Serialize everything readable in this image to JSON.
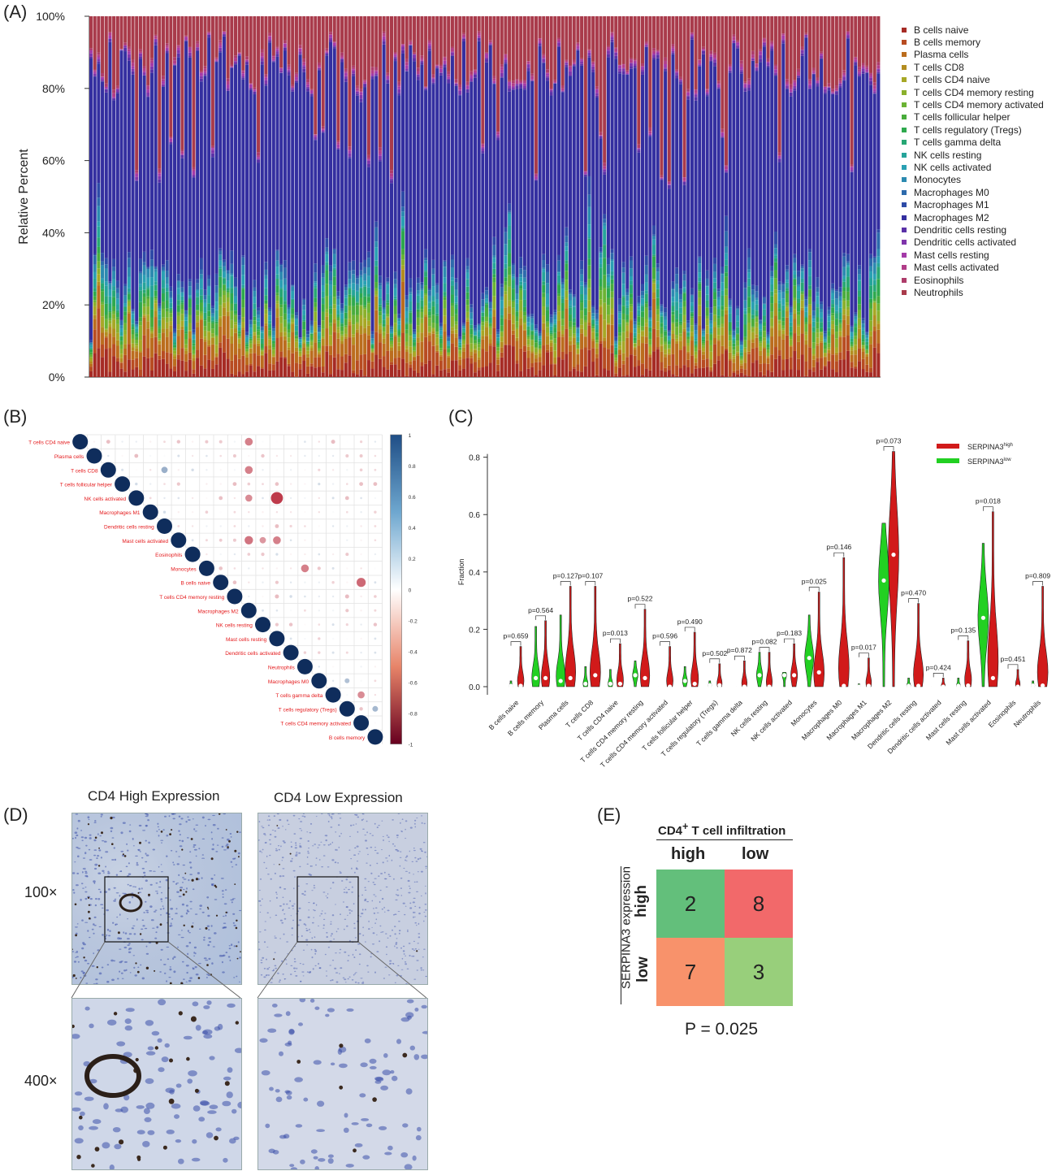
{
  "panels": {
    "A": "(A)",
    "B": "(B)",
    "C": "(C)",
    "D": "(D)",
    "E": "(E)"
  },
  "colors": {
    "cell_types": [
      "#a62b25",
      "#b84c22",
      "#bb6d1e",
      "#b38d20",
      "#a7a826",
      "#8bb02c",
      "#6bb334",
      "#49ac3c",
      "#2ea94e",
      "#27a774",
      "#26a49a",
      "#2aa0b3",
      "#2c8ab0",
      "#2d6aac",
      "#2e4ba7",
      "#342fa0",
      "#5a31a7",
      "#7f35ab",
      "#a43aa8",
      "#b13d89",
      "#ae3c6a",
      "#a93b4b"
    ],
    "high": "#d11a1a",
    "low": "#22d022",
    "corr_pos": "#1f4e86",
    "corr_neg": "#b2182b",
    "table_green": "#63bf7b",
    "table_red": "#f2696a",
    "table_orange": "#f8926b",
    "table_lightgreen": "#98cf7b"
  },
  "chart_data": [
    {
      "id": "A",
      "type": "bar",
      "ylabel": "Relative Percent",
      "y_ticks": [
        "0%",
        "20%",
        "40%",
        "60%",
        "80%",
        "100%"
      ],
      "stacked": true,
      "n_samples": 208,
      "ylim": [
        0,
        100
      ],
      "mean_composition_percent": {
        "Low-abundance types": 18,
        "Macrophages M2": 55,
        "Neutrophils": 13
      },
      "legend": [
        "B cells naive",
        "B cells memory",
        "Plasma cells",
        "T cells CD8",
        "T cells CD4 naive",
        "T cells CD4 memory resting",
        "T cells CD4 memory activated",
        "T cells follicular helper",
        "T cells regulatory (Tregs)",
        "T cells gamma delta",
        "NK cells resting",
        "NK cells activated",
        "Monocytes",
        "Macrophages M0",
        "Macrophages M1",
        "Macrophages M2",
        "Dendritic cells resting",
        "Dendritic cells activated",
        "Mast cells resting",
        "Mast cells activated",
        "Eosinophils",
        "Neutrophils"
      ]
    },
    {
      "id": "B",
      "type": "heatmap",
      "labels": [
        "T cells CD4 naive",
        "Plasma cells",
        "T cells CD8",
        "T cells follicular helper",
        "NK cells activated",
        "Macrophages M1",
        "Dendritic cells resting",
        "Mast cells activated",
        "Eosinophils",
        "Monocytes",
        "B cells naive",
        "T cells CD4 memory resting",
        "Macrophages M2",
        "NK cells resting",
        "Mast cells resting",
        "Dendritic cells activated",
        "Neutrophils",
        "Macrophages M0",
        "T cells gamma delta",
        "T cells regulatory (Tregs)",
        "T cells CD4 memory activated",
        "B cells memory"
      ],
      "colorbar_ticks": [
        "1",
        "0.8",
        "0.6",
        "0.4",
        "0.2",
        "0",
        "-0.2",
        "-0.4",
        "-0.6",
        "-0.8",
        "-1"
      ],
      "highlighted_correlations": [
        {
          "row": "T cells CD4 naive",
          "col": "Macrophages M2",
          "value": -0.55
        },
        {
          "row": "T cells CD8",
          "col": "Dendritic cells resting",
          "value": 0.45
        },
        {
          "row": "T cells CD8",
          "col": "Macrophages M2",
          "value": -0.55
        },
        {
          "row": "NK cells activated",
          "col": "Macrophages M2",
          "value": -0.5
        },
        {
          "row": "NK cells activated",
          "col": "Mast cells resting",
          "value": -0.85
        },
        {
          "row": "Mast cells activated",
          "col": "Macrophages M2",
          "value": -0.6
        },
        {
          "row": "Mast cells activated",
          "col": "NK cells resting",
          "value": -0.45
        },
        {
          "row": "Mast cells activated",
          "col": "Mast cells resting",
          "value": -0.55
        },
        {
          "row": "Monocytes",
          "col": "Neutrophils",
          "value": -0.55
        },
        {
          "row": "B cells naive",
          "col": "T cells CD4 memory activated",
          "value": -0.65
        },
        {
          "row": "Macrophages M0",
          "col": "T cells regulatory (Tregs)",
          "value": 0.35
        },
        {
          "row": "T cells gamma delta",
          "col": "T cells CD4 memory activated",
          "value": -0.5
        },
        {
          "row": "T cells regulatory (Tregs)",
          "col": "B cells memory",
          "value": 0.4
        }
      ]
    },
    {
      "id": "C",
      "type": "violin",
      "ylabel": "Fraction",
      "ylim": [
        0,
        0.85
      ],
      "y_ticks": [
        "0.0",
        "0.2",
        "0.4",
        "0.6",
        "0.8"
      ],
      "legend": {
        "high_base": "SERPINA3",
        "high_sup": "high",
        "low_base": "SERPINA3",
        "low_sup": "low"
      },
      "categories": [
        "B cells naive",
        "B cells memory",
        "Plasma cells",
        "T cells CD8",
        "T cells CD4 naive",
        "T cells CD4 memory resting",
        "T cells CD4 memory activated",
        "T cells follicular helper",
        "T cells regulatory (Tregs)",
        "T cells gamma delta",
        "NK cells resting",
        "NK cells activated",
        "Monocytes",
        "Macrophages M0",
        "Macrophages M1",
        "Macrophages M2",
        "Dendritic cells resting",
        "Dendritic cells activated",
        "Mast cells resting",
        "Mast cells activated",
        "Eosinophils",
        "Neutrophils"
      ],
      "p_values": [
        "p=0.659",
        "p=0.564",
        "p=0.127",
        "p=0.107",
        "p=0.013",
        "p=0.522",
        "p=0.596",
        "p=0.490",
        "p=0.502",
        "p=0.872",
        "p=0.082",
        "p=0.183",
        "p=0.025",
        "p=0.146",
        "p=0.017",
        "p=0.073",
        "p=0.470",
        "p=0.424",
        "p=0.135",
        "p=0.018",
        "p=0.451",
        "p=0.809"
      ],
      "max_low": [
        0.02,
        0.21,
        0.25,
        0.07,
        0.06,
        0.09,
        0.003,
        0.07,
        0.02,
        0.003,
        0.12,
        0.05,
        0.25,
        0.0,
        0.01,
        0.57,
        0.03,
        0.003,
        0.03,
        0.5,
        0.003,
        0.02
      ],
      "max_high": [
        0.14,
        0.23,
        0.35,
        0.35,
        0.15,
        0.27,
        0.14,
        0.19,
        0.08,
        0.09,
        0.12,
        0.15,
        0.33,
        0.45,
        0.1,
        0.82,
        0.29,
        0.03,
        0.16,
        0.61,
        0.06,
        0.35
      ],
      "median_low": [
        0.003,
        0.03,
        0.02,
        0.01,
        0.01,
        0.04,
        0.0,
        0.02,
        0.005,
        0.0,
        0.04,
        0.04,
        0.1,
        0.0,
        0.0,
        0.37,
        0.003,
        0.0,
        0.003,
        0.24,
        0.0,
        0.004
      ],
      "median_high": [
        0.003,
        0.03,
        0.03,
        0.04,
        0.01,
        0.03,
        0.0,
        0.01,
        0.005,
        0.0,
        0.0,
        0.04,
        0.05,
        0.003,
        0.003,
        0.46,
        0.003,
        0.0,
        0.004,
        0.03,
        0.0,
        0.004
      ]
    },
    {
      "id": "E",
      "type": "table",
      "header_base": "CD4",
      "header_sup": "+",
      "header_rest": "T cell infiltration",
      "col_labels": [
        "high",
        "low"
      ],
      "row_title": "SERPINA3 expression",
      "row_labels": [
        "high",
        "low"
      ],
      "values": [
        [
          2,
          8
        ],
        [
          7,
          3
        ]
      ],
      "p_value": "P = 0.025"
    }
  ],
  "micrographs": {
    "title_high": "CD4 High Expression",
    "title_low": "CD4 Low Expression",
    "mag_100": "100×",
    "mag_400": "400×"
  }
}
